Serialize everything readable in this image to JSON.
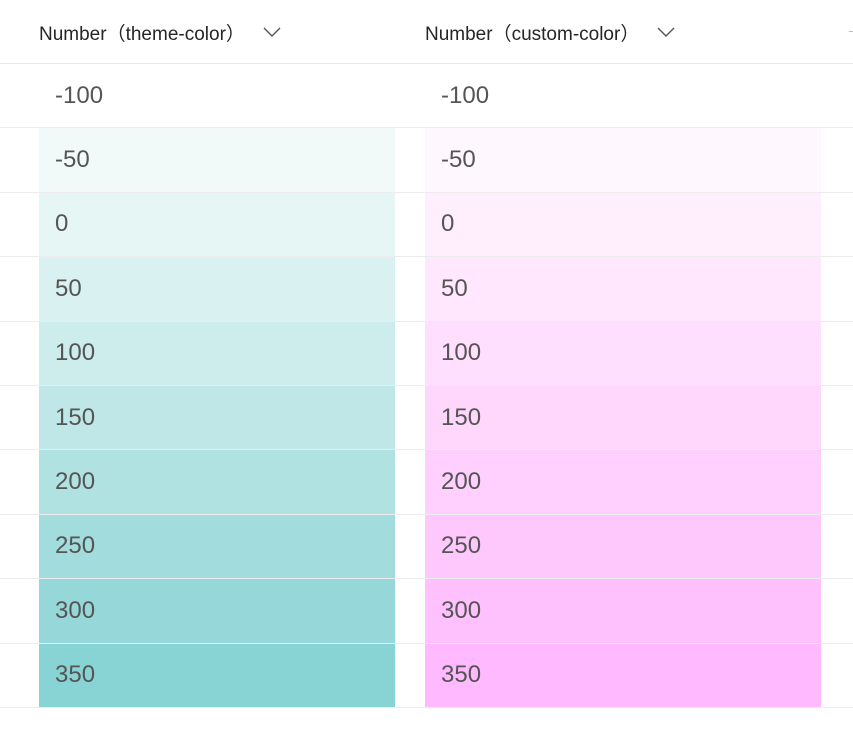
{
  "columns": {
    "theme": {
      "label": "Number（theme-color）",
      "icon": "chevron-down-icon"
    },
    "custom": {
      "label": "Number（custom-color）",
      "icon": "chevron-down-icon"
    }
  },
  "rows": [
    {
      "theme": "-100",
      "custom": "-100",
      "theme_color": "#ffffff",
      "custom_color": "#ffffff"
    },
    {
      "theme": "-50",
      "custom": "-50",
      "theme_color": "#f1faf9",
      "custom_color": "#fff7fe"
    },
    {
      "theme": "0",
      "custom": "0",
      "theme_color": "#e6f6f5",
      "custom_color": "#ffeffd"
    },
    {
      "theme": "50",
      "custom": "50",
      "theme_color": "#daf1f1",
      "custom_color": "#ffe7fd"
    },
    {
      "theme": "100",
      "custom": "100",
      "theme_color": "#cdecec",
      "custom_color": "#ffdffd"
    },
    {
      "theme": "150",
      "custom": "150",
      "theme_color": "#bfe7e7",
      "custom_color": "#ffd7fd"
    },
    {
      "theme": "200",
      "custom": "200",
      "theme_color": "#b1e2e2",
      "custom_color": "#ffd0fd"
    },
    {
      "theme": "250",
      "custom": "250",
      "theme_color": "#a2dcdd",
      "custom_color": "#ffc8fd"
    },
    {
      "theme": "300",
      "custom": "300",
      "theme_color": "#96d8d9",
      "custom_color": "#ffc1fd"
    },
    {
      "theme": "350",
      "custom": "350",
      "theme_color": "#88d3d4",
      "custom_color": "#ffb9fe"
    }
  ]
}
